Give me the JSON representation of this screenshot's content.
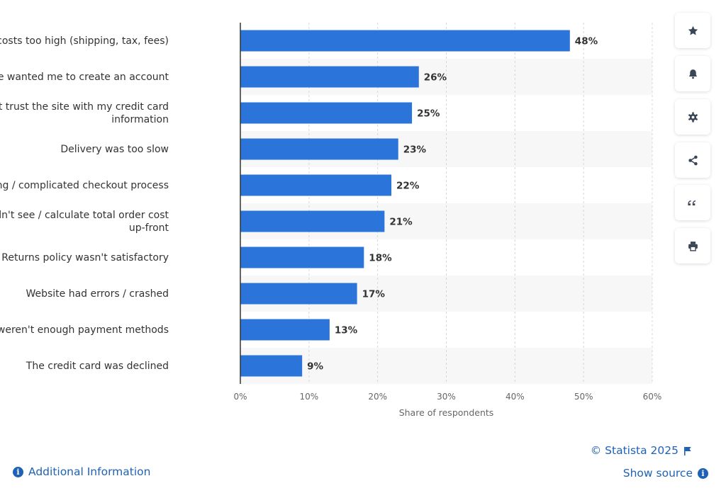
{
  "colors": {
    "bar": "#2b74d9",
    "accent": "#1f62b5",
    "band": "#f7f7f7",
    "grid": "#d7d7d7",
    "axis": "#333333"
  },
  "chart_data": {
    "type": "bar",
    "orientation": "horizontal",
    "title": "",
    "categories": [
      [
        "Extra costs too high (shipping, tax, fees)"
      ],
      [
        "The site wanted me to create an account"
      ],
      [
        "I didn't trust the site with my credit card",
        "information"
      ],
      [
        "Delivery was too slow"
      ],
      [
        "Too long / complicated checkout process"
      ],
      [
        "I couldn't see / calculate total order cost",
        "up-front"
      ],
      [
        "Returns policy wasn't satisfactory"
      ],
      [
        "Website had errors / crashed"
      ],
      [
        "There weren't enough payment methods"
      ],
      [
        "The credit card was declined"
      ]
    ],
    "values": [
      48,
      26,
      25,
      23,
      22,
      21,
      18,
      17,
      13,
      9
    ],
    "value_suffix": "%",
    "xlabel": "Share of respondents",
    "ylabel": "",
    "xlim": [
      0,
      60
    ],
    "xticks": [
      "0%",
      "10%",
      "20%",
      "30%",
      "40%",
      "50%",
      "60%"
    ],
    "grid": true
  },
  "sidebar": {
    "buttons": [
      {
        "name": "favorite-button",
        "icon": "star-icon"
      },
      {
        "name": "notification-button",
        "icon": "bell-icon"
      },
      {
        "name": "settings-button",
        "icon": "gear-icon"
      },
      {
        "name": "share-button",
        "icon": "share-icon"
      },
      {
        "name": "cite-button",
        "icon": "quote-icon"
      },
      {
        "name": "print-button",
        "icon": "printer-icon"
      }
    ]
  },
  "footer": {
    "copyright": "© Statista 2025",
    "show_source": "Show source",
    "additional_info": "Additional Information"
  }
}
